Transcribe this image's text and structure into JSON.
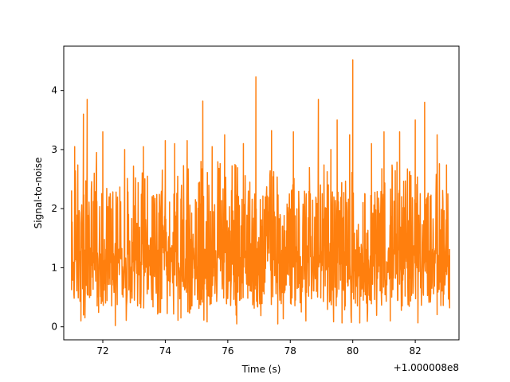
{
  "chart_data": {
    "type": "line",
    "title": "",
    "xlabel": "Time (s)",
    "ylabel": "Signal-to-noise",
    "x_offset_label": "+1.000008e8",
    "xlim": [
      70.75,
      83.4
    ],
    "ylim": [
      -0.22,
      4.75
    ],
    "xticks": [
      72,
      74,
      76,
      78,
      80,
      82
    ],
    "yticks": [
      0,
      1,
      2,
      3,
      4
    ],
    "grid": false,
    "series": [
      {
        "color": "#ff7f0e",
        "x_range": [
          71.0,
          83.1
        ],
        "sample_points": [
          [
            71.0,
            0.62
          ],
          [
            71.1,
            3.05
          ],
          [
            71.2,
            2.74
          ],
          [
            71.3,
            0.1
          ],
          [
            71.38,
            3.6
          ],
          [
            71.5,
            3.85
          ],
          [
            71.8,
            2.95
          ],
          [
            72.0,
            3.3
          ],
          [
            72.2,
            2.2
          ],
          [
            72.4,
            0.02
          ],
          [
            72.7,
            3.0
          ],
          [
            73.3,
            3.05
          ],
          [
            74.0,
            3.15
          ],
          [
            74.3,
            3.1
          ],
          [
            74.5,
            0.15
          ],
          [
            74.7,
            3.15
          ],
          [
            75.2,
            3.82
          ],
          [
            75.5,
            3.05
          ],
          [
            75.9,
            3.25
          ],
          [
            76.5,
            3.1
          ],
          [
            76.9,
            4.23
          ],
          [
            77.4,
            3.32
          ],
          [
            77.6,
            0.05
          ],
          [
            78.1,
            3.3
          ],
          [
            78.5,
            0.1
          ],
          [
            78.9,
            3.85
          ],
          [
            79.3,
            3.0
          ],
          [
            79.5,
            3.5
          ],
          [
            79.9,
            3.25
          ],
          [
            80.0,
            4.52
          ],
          [
            80.6,
            3.1
          ],
          [
            81.0,
            3.3
          ],
          [
            81.2,
            0.1
          ],
          [
            81.5,
            3.3
          ],
          [
            82.0,
            3.5
          ],
          [
            82.3,
            3.8
          ],
          [
            82.7,
            3.25
          ],
          [
            83.0,
            2.74
          ],
          [
            83.1,
            0.32
          ]
        ],
        "typical_range": [
          0.2,
          2.5
        ]
      }
    ]
  }
}
